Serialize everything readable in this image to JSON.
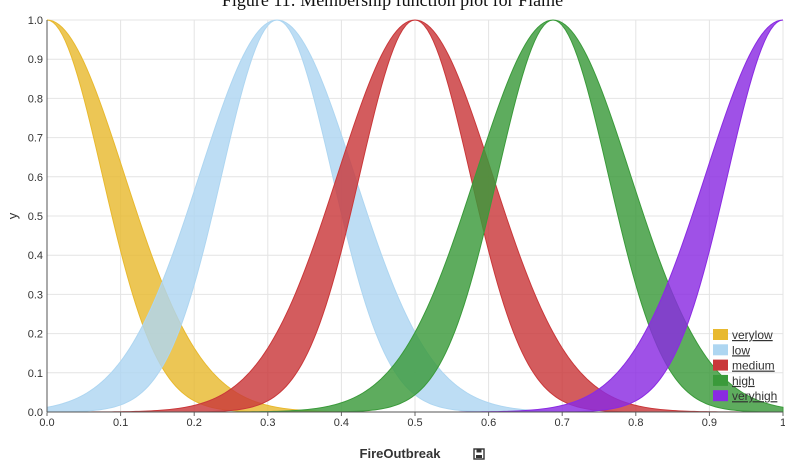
{
  "caption": "Figure 11: Membership function plot for Flame",
  "chart_data": {
    "type": "area",
    "xlabel": "FireOutbreak",
    "ylabel": "y",
    "xlim": [
      0,
      1
    ],
    "ylim": [
      0,
      1
    ],
    "x_ticks": [
      0.0,
      0.1,
      0.2,
      0.3,
      0.4,
      0.5,
      0.6,
      0.7,
      0.8,
      0.9,
      1.0
    ],
    "x_tick_labels": [
      "0.0",
      "0.1",
      "0.2",
      "0.3",
      "0.4",
      "0.5",
      "0.6",
      "0.7",
      "0.8",
      "0.9",
      "1"
    ],
    "y_ticks": [
      0.0,
      0.1,
      0.2,
      0.3,
      0.4,
      0.5,
      0.6,
      0.7,
      0.8,
      0.9,
      1.0
    ],
    "y_tick_labels": [
      "0.0",
      "0.1",
      "0.2",
      "0.3",
      "0.4",
      "0.5",
      "0.6",
      "0.7",
      "0.8",
      "0.9",
      "1.0"
    ],
    "grid": true,
    "legend_position": "bottom-right",
    "series": [
      {
        "name": "verylow",
        "color": "#e8b92f",
        "mean": 0.0,
        "sigma_lower": 0.075,
        "sigma_upper": 0.105
      },
      {
        "name": "low",
        "color": "#aed6f1",
        "mean": 0.3125,
        "sigma_lower": 0.075,
        "sigma_upper": 0.105
      },
      {
        "name": "medium",
        "color": "#c9383a",
        "mean": 0.5,
        "sigma_lower": 0.075,
        "sigma_upper": 0.105
      },
      {
        "name": "high",
        "color": "#3a9a3a",
        "mean": 0.6875,
        "sigma_lower": 0.075,
        "sigma_upper": 0.105
      },
      {
        "name": "veryhigh",
        "color": "#8a2be2",
        "mean": 1.0,
        "sigma_lower": 0.075,
        "sigma_upper": 0.105
      }
    ]
  }
}
